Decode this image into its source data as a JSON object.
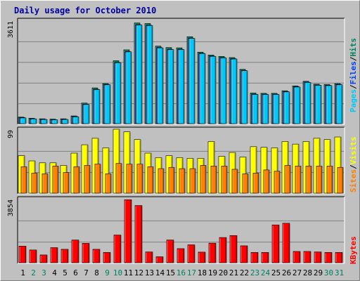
{
  "title": "Daily usage for October 2010",
  "colors": {
    "title": "#0000a0",
    "hits": "#00805c",
    "files": "#0040ff",
    "pages": "#00c8f8",
    "visits": "#ffff00",
    "sites": "#ff8000",
    "kbytes": "#ff0000",
    "weekend_label": "#00805c",
    "weekday_label": "#000000",
    "panel_bg": "#c0c0c0",
    "grid": "#808080"
  },
  "legend_top": [
    {
      "key": "pages",
      "text": "Pages"
    },
    {
      "key": "sep",
      "text": "/"
    },
    {
      "key": "files",
      "text": "Files"
    },
    {
      "key": "sep",
      "text": "/"
    },
    {
      "key": "hits",
      "text": "Hits"
    }
  ],
  "legend_mid": [
    {
      "key": "sites",
      "text": "Sites"
    },
    {
      "key": "sep",
      "text": "/"
    },
    {
      "key": "visits",
      "text": "Visits"
    }
  ],
  "legend_bottom": [
    {
      "key": "kbytes",
      "text": "KBytes"
    }
  ],
  "chart_data": [
    {
      "type": "bar",
      "title": "Daily usage for October 2010",
      "ymax_label": "3611",
      "ylim": [
        0,
        3611
      ],
      "categories": [
        "1",
        "2",
        "3",
        "4",
        "5",
        "6",
        "7",
        "8",
        "9",
        "10",
        "11",
        "12",
        "13",
        "14",
        "15",
        "16",
        "17",
        "18",
        "19",
        "20",
        "21",
        "22",
        "23",
        "24",
        "25",
        "26",
        "27",
        "28",
        "29",
        "30",
        "31"
      ],
      "weekend_days": [
        "2",
        "3",
        "9",
        "10",
        "16",
        "17",
        "23",
        "24",
        "30",
        "31"
      ],
      "series": [
        {
          "name": "Hits",
          "values": [
            230,
            190,
            170,
            160,
            170,
            270,
            720,
            1250,
            1400,
            2200,
            2580,
            3520,
            3500,
            2710,
            2660,
            2650,
            3040,
            2500,
            2400,
            2350,
            2310,
            1900,
            1070,
            1060,
            1060,
            1150,
            1320,
            1480,
            1380,
            1370,
            1400
          ]
        },
        {
          "name": "Files",
          "values": [
            210,
            170,
            150,
            140,
            150,
            250,
            680,
            1200,
            1370,
            2140,
            2520,
            3460,
            3440,
            2660,
            2600,
            2600,
            2990,
            2460,
            2360,
            2310,
            2270,
            1860,
            1030,
            1030,
            1030,
            1120,
            1290,
            1450,
            1350,
            1340,
            1370
          ]
        },
        {
          "name": "Pages",
          "values": [
            200,
            165,
            145,
            135,
            145,
            240,
            670,
            1190,
            1360,
            2130,
            2510,
            3450,
            3430,
            2650,
            2590,
            2590,
            2980,
            2450,
            2350,
            2300,
            2260,
            1850,
            1020,
            1020,
            1020,
            1110,
            1280,
            1440,
            1340,
            1330,
            1360
          ]
        }
      ]
    },
    {
      "type": "bar",
      "ymax_label": "99",
      "ylim": [
        0,
        99
      ],
      "categories": [
        "1",
        "2",
        "3",
        "4",
        "5",
        "6",
        "7",
        "8",
        "9",
        "10",
        "11",
        "12",
        "13",
        "14",
        "15",
        "16",
        "17",
        "18",
        "19",
        "20",
        "21",
        "22",
        "23",
        "24",
        "25",
        "26",
        "27",
        "28",
        "29",
        "30",
        "31"
      ],
      "series": [
        {
          "name": "Visits",
          "values": [
            58,
            50,
            47,
            47,
            43,
            62,
            75,
            85,
            70,
            99,
            95,
            83,
            62,
            55,
            58,
            55,
            54,
            54,
            80,
            57,
            63,
            56,
            72,
            71,
            70,
            80,
            76,
            80,
            85,
            83,
            87
          ]
        },
        {
          "name": "Sites",
          "values": [
            41,
            31,
            30,
            42,
            32,
            41,
            43,
            45,
            30,
            46,
            45,
            45,
            41,
            38,
            40,
            38,
            38,
            43,
            42,
            42,
            37,
            30,
            31,
            36,
            34,
            43,
            42,
            42,
            42,
            42,
            40
          ]
        }
      ]
    },
    {
      "type": "bar",
      "ymax_label": "3854",
      "ylim": [
        0,
        3854
      ],
      "categories": [
        "1",
        "2",
        "3",
        "4",
        "5",
        "6",
        "7",
        "8",
        "9",
        "10",
        "11",
        "12",
        "13",
        "14",
        "15",
        "16",
        "17",
        "18",
        "19",
        "20",
        "21",
        "22",
        "23",
        "24",
        "25",
        "26",
        "27",
        "28",
        "29",
        "30",
        "31"
      ],
      "series": [
        {
          "name": "KBytes",
          "values": [
            1000,
            770,
            470,
            910,
            810,
            1370,
            1170,
            810,
            620,
            1670,
            3800,
            3450,
            650,
            360,
            1370,
            850,
            1080,
            640,
            1180,
            1520,
            1640,
            1020,
            620,
            620,
            2280,
            2380,
            680,
            680,
            650,
            620,
            620
          ]
        }
      ]
    }
  ]
}
